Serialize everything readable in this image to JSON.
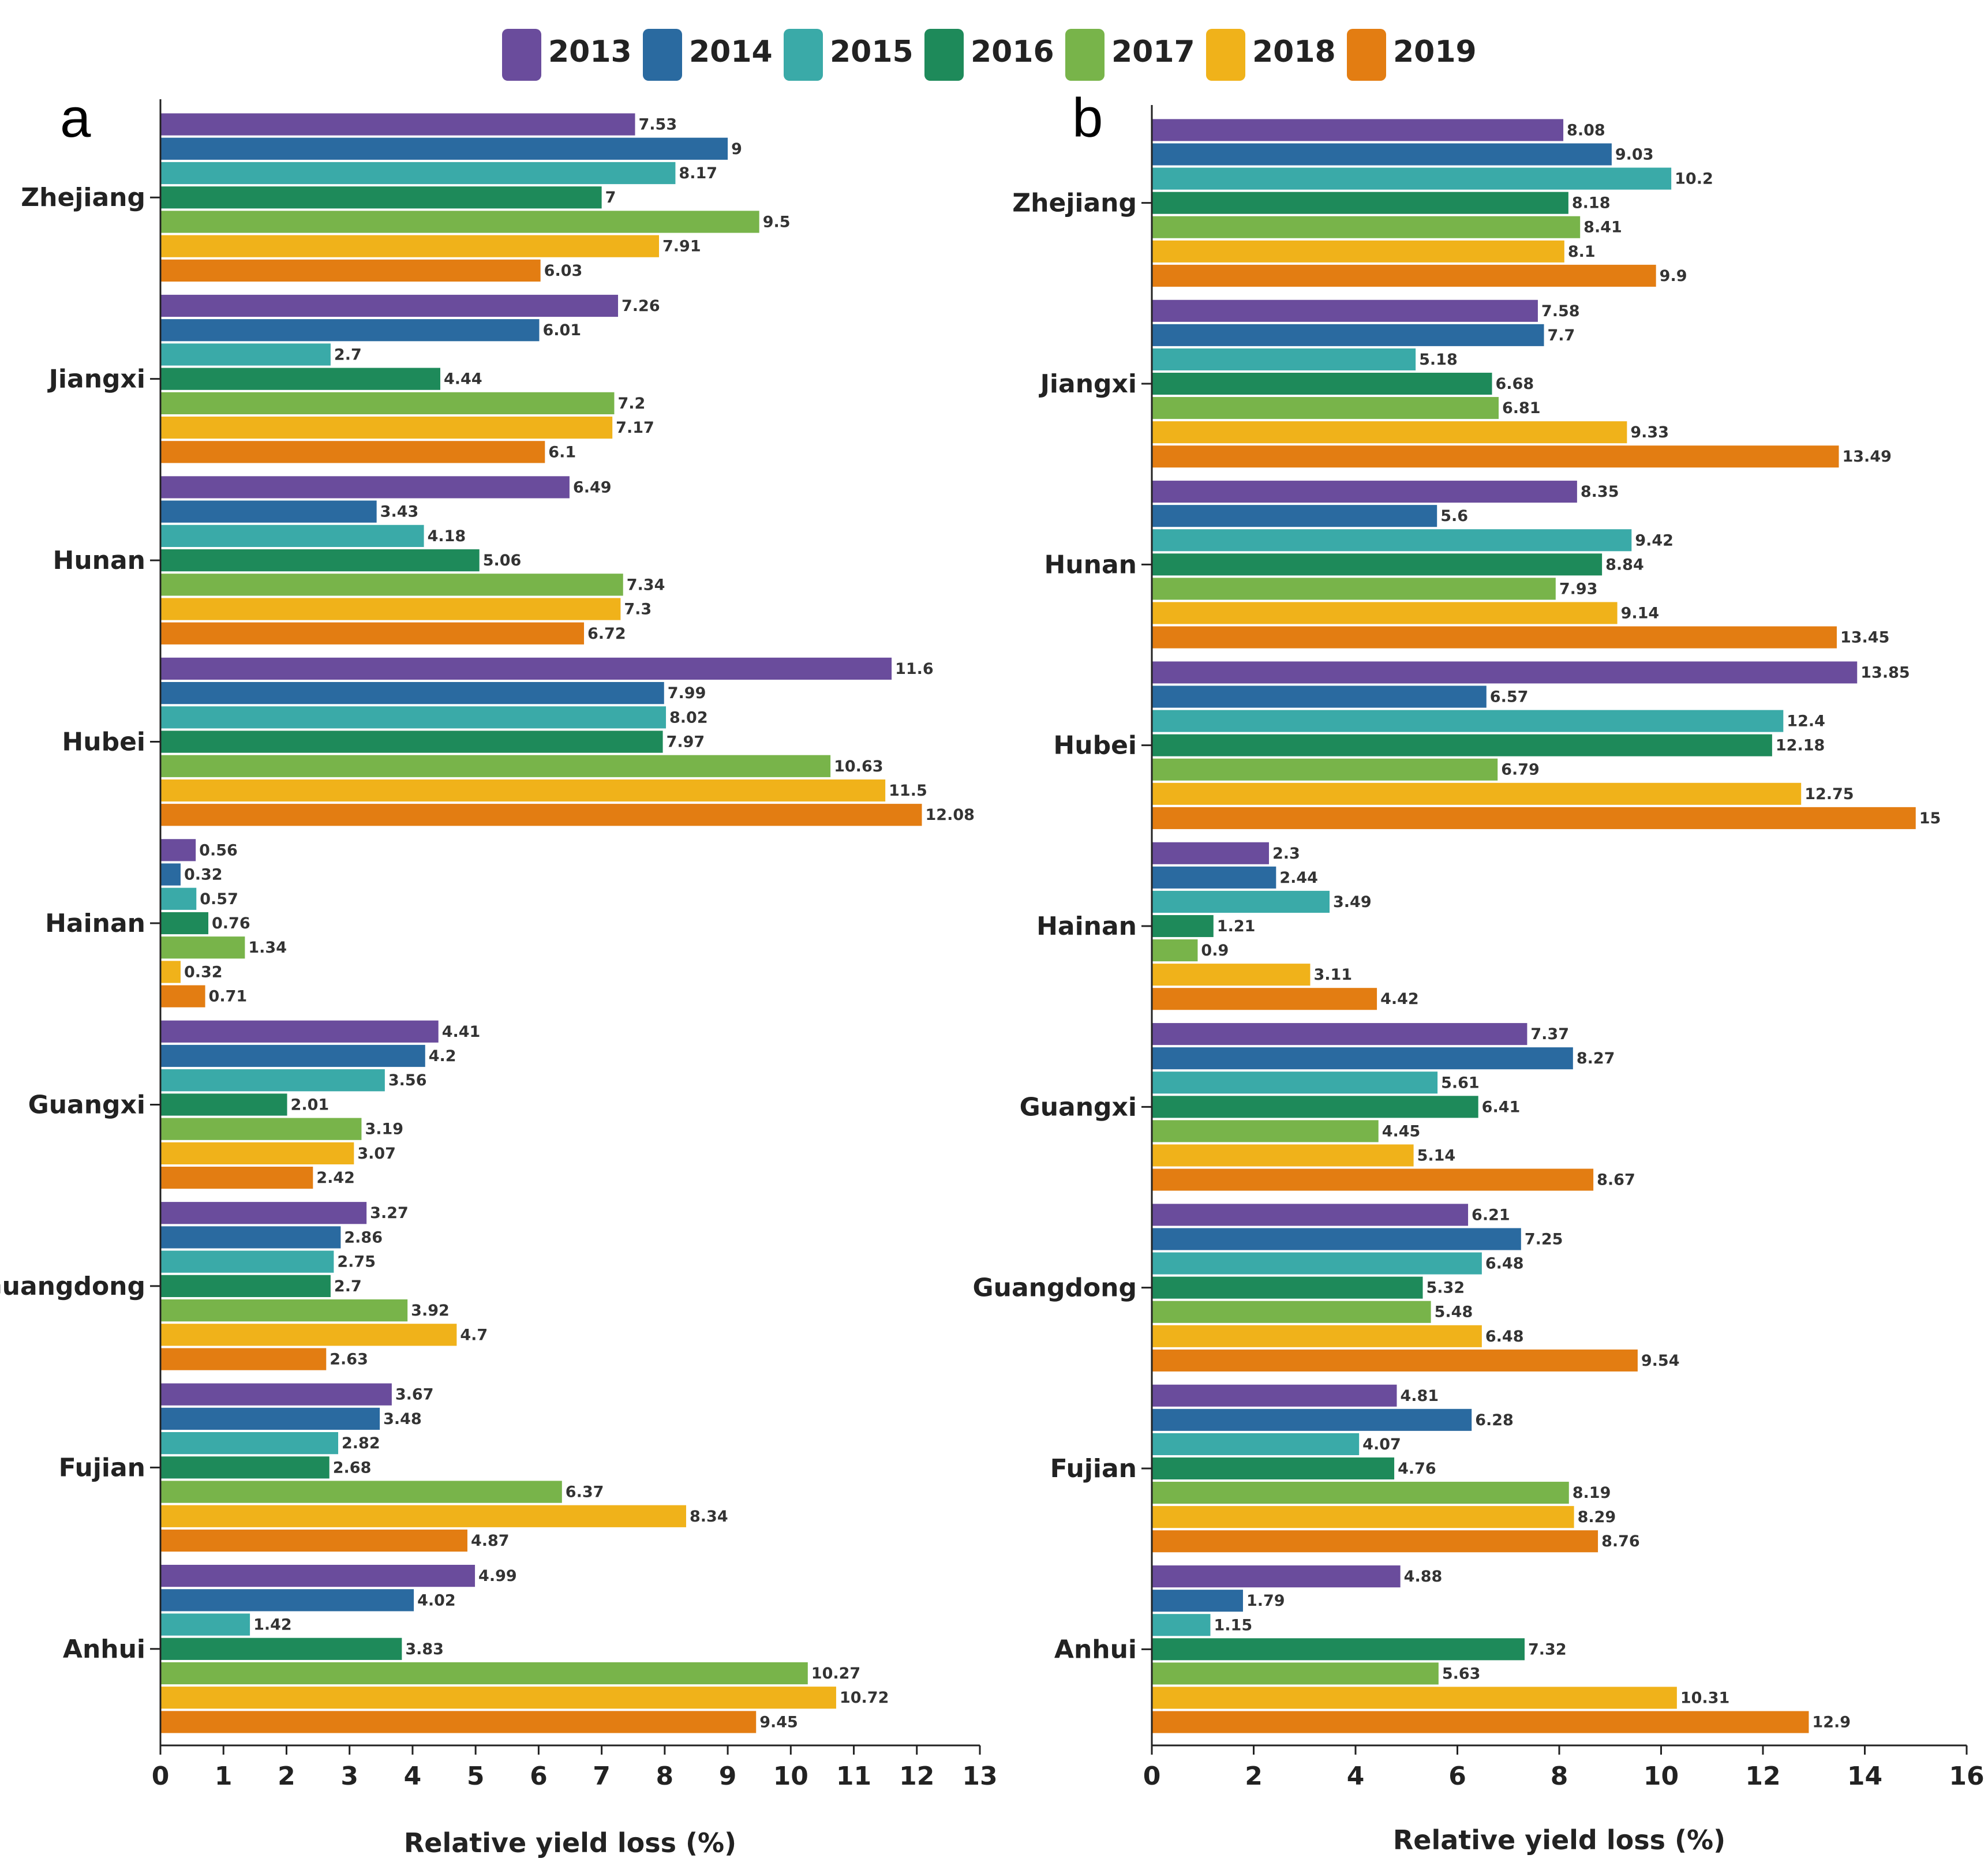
{
  "legend": {
    "items": [
      {
        "label": "2013",
        "color": "#6a4c9c"
      },
      {
        "label": "2014",
        "color": "#2a6aa0"
      },
      {
        "label": "2015",
        "color": "#3aaaa8"
      },
      {
        "label": "2016",
        "color": "#1e8a5a"
      },
      {
        "label": "2017",
        "color": "#78b44a"
      },
      {
        "label": "2018",
        "color": "#f0b21a"
      },
      {
        "label": "2019",
        "color": "#e37d12"
      }
    ]
  },
  "chart_data": [
    {
      "type": "bar",
      "orientation": "horizontal",
      "panel_label": "a",
      "title": "",
      "xlabel": "Relative yield loss (%)",
      "ylabel": "",
      "xlim": [
        0,
        13
      ],
      "xticks": [
        0,
        1,
        2,
        3,
        4,
        5,
        6,
        7,
        8,
        9,
        10,
        11,
        12,
        13
      ],
      "categories": [
        "Zhejiang",
        "Jiangxi",
        "Hunan",
        "Hubei",
        "Hainan",
        "Guangxi",
        "Guangdong",
        "Fujian",
        "Anhui"
      ],
      "series": [
        {
          "name": "2013",
          "values": [
            7.53,
            7.26,
            6.49,
            11.6,
            0.56,
            4.41,
            3.27,
            3.67,
            4.99
          ]
        },
        {
          "name": "2014",
          "values": [
            9,
            6.01,
            3.43,
            7.99,
            0.32,
            4.2,
            2.86,
            3.48,
            4.02
          ]
        },
        {
          "name": "2015",
          "values": [
            8.17,
            2.7,
            4.18,
            8.02,
            0.57,
            3.56,
            2.75,
            2.82,
            1.42
          ]
        },
        {
          "name": "2016",
          "values": [
            7,
            4.44,
            5.06,
            7.97,
            0.76,
            2.01,
            2.7,
            2.68,
            3.83
          ]
        },
        {
          "name": "2017",
          "values": [
            9.5,
            7.2,
            7.34,
            10.63,
            1.34,
            3.19,
            3.92,
            6.37,
            10.27
          ]
        },
        {
          "name": "2018",
          "values": [
            7.91,
            7.17,
            7.3,
            11.5,
            0.32,
            3.07,
            4.7,
            8.34,
            10.72
          ]
        },
        {
          "name": "2019",
          "values": [
            6.03,
            6.1,
            6.72,
            12.08,
            0.71,
            2.42,
            2.63,
            4.87,
            9.45
          ]
        }
      ]
    },
    {
      "type": "bar",
      "orientation": "horizontal",
      "panel_label": "b",
      "title": "",
      "xlabel": "Relative yield loss (%)",
      "ylabel": "",
      "xlim": [
        0,
        16
      ],
      "xticks": [
        0,
        2,
        4,
        6,
        8,
        10,
        12,
        14,
        16
      ],
      "categories": [
        "Zhejiang",
        "Jiangxi",
        "Hunan",
        "Hubei",
        "Hainan",
        "Guangxi",
        "Guangdong",
        "Fujian",
        "Anhui"
      ],
      "series": [
        {
          "name": "2013",
          "values": [
            8.08,
            7.58,
            8.35,
            13.85,
            2.3,
            7.37,
            6.21,
            4.81,
            4.88
          ]
        },
        {
          "name": "2014",
          "values": [
            9.03,
            7.7,
            5.6,
            6.57,
            2.44,
            8.27,
            7.25,
            6.28,
            1.79
          ]
        },
        {
          "name": "2015",
          "values": [
            10.2,
            5.18,
            9.42,
            12.4,
            3.49,
            5.61,
            6.48,
            4.07,
            1.15
          ]
        },
        {
          "name": "2016",
          "values": [
            8.18,
            6.68,
            8.84,
            12.18,
            1.21,
            6.41,
            5.32,
            4.76,
            7.32
          ]
        },
        {
          "name": "2017",
          "values": [
            8.41,
            6.81,
            7.93,
            6.79,
            0.9,
            4.45,
            5.48,
            8.19,
            5.63
          ]
        },
        {
          "name": "2018",
          "values": [
            8.1,
            9.33,
            9.14,
            12.75,
            3.11,
            5.14,
            6.48,
            8.29,
            10.31
          ]
        },
        {
          "name": "2019",
          "values": [
            9.9,
            13.49,
            13.45,
            15,
            4.42,
            8.67,
            9.54,
            8.76,
            12.9
          ]
        }
      ]
    }
  ]
}
